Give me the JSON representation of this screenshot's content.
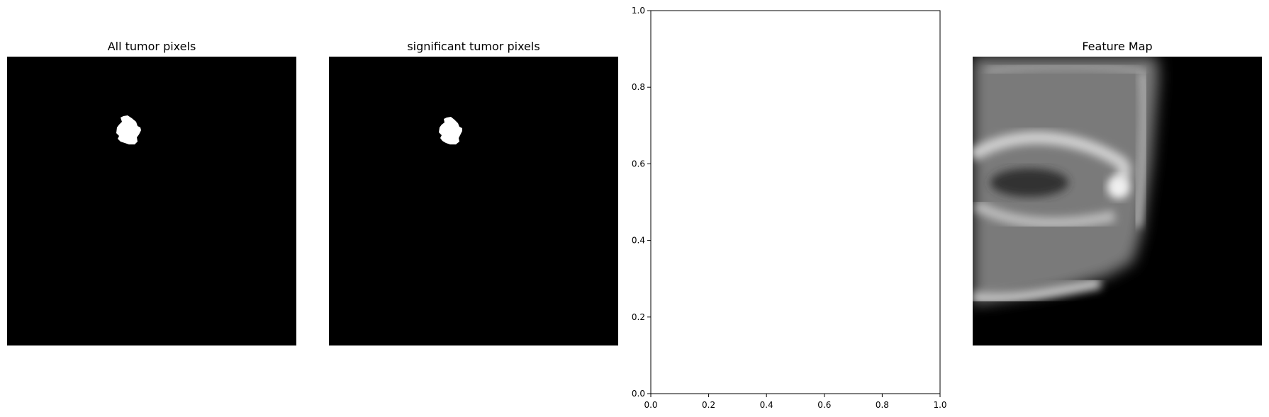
{
  "chart_data": [
    {
      "type": "image",
      "title": "All tumor pixels",
      "colormap": "gray",
      "axis": "off",
      "content": "binary tumor mask"
    },
    {
      "type": "image",
      "title": "significant tumor pixels",
      "colormap": "gray",
      "axis": "off",
      "content": "binary tumor mask"
    },
    {
      "type": "scatter",
      "title": "",
      "xlabel": "",
      "ylabel": "",
      "xlim": [
        0.0,
        1.0
      ],
      "ylim": [
        0.0,
        1.0
      ],
      "xticks": [
        "0.0",
        "0.2",
        "0.4",
        "0.6",
        "0.8",
        "1.0"
      ],
      "yticks": [
        "0.0",
        "0.2",
        "0.4",
        "0.6",
        "0.8",
        "1.0"
      ],
      "grid": false,
      "series": []
    },
    {
      "type": "image",
      "title": "Feature Map",
      "colormap": "gray",
      "axis": "off",
      "content": "blurred grayscale feature activation map"
    }
  ]
}
